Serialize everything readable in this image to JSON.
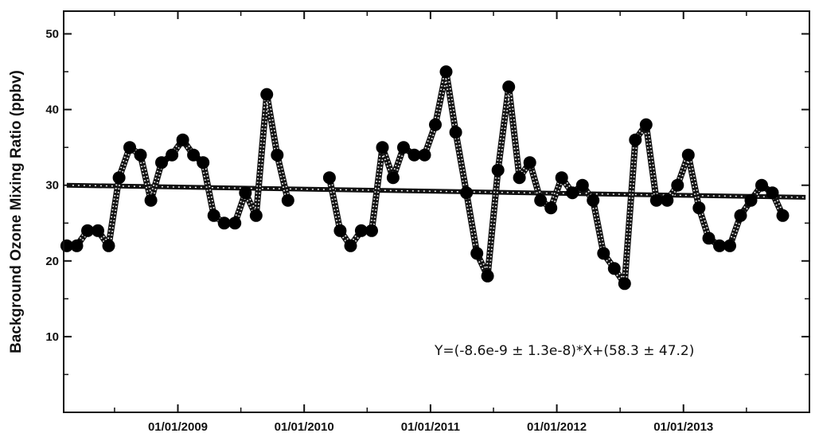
{
  "chart_data": {
    "type": "line",
    "ylabel": "Background Ozone Mixing Ratio (ppbv)",
    "xlabel": "",
    "ylim": [
      0,
      53
    ],
    "xlim": [
      "2008-02-06",
      "2013-12-31"
    ],
    "yticks": [
      10,
      20,
      30,
      40,
      50
    ],
    "yticks_minor": [
      5,
      15,
      25,
      35,
      45
    ],
    "xticks": [
      {
        "date": "2009-01-01",
        "label": "01/01/2009"
      },
      {
        "date": "2010-01-01",
        "label": "01/01/2010"
      },
      {
        "date": "2011-01-01",
        "label": "01/01/2011"
      },
      {
        "date": "2012-01-01",
        "label": "01/01/2012"
      },
      {
        "date": "2013-01-01",
        "label": "01/01/2013"
      }
    ],
    "xticks_minor": [
      "2008-07-02",
      "2009-07-02",
      "2010-07-02",
      "2011-07-02",
      "2012-07-02",
      "2013-07-02"
    ],
    "grid": false,
    "equation": "Y=(-8.6e-9 ± 1.3e-8)*X+(58.3 ± 47.2)",
    "trend": {
      "start": {
        "x": "2008-02-15",
        "y": 30.0
      },
      "end": {
        "x": "2013-12-20",
        "y": 28.4
      }
    },
    "series": [
      {
        "segments": [
          [
            {
              "x": "2008-02-15",
              "y": 22
            },
            {
              "x": "2008-03-15",
              "y": 22
            },
            {
              "x": "2008-04-15",
              "y": 24
            },
            {
              "x": "2008-05-15",
              "y": 24
            },
            {
              "x": "2008-06-15",
              "y": 22
            },
            {
              "x": "2008-07-15",
              "y": 31
            },
            {
              "x": "2008-08-15",
              "y": 35
            },
            {
              "x": "2008-09-15",
              "y": 34
            },
            {
              "x": "2008-10-15",
              "y": 28
            },
            {
              "x": "2008-11-15",
              "y": 33
            },
            {
              "x": "2008-12-15",
              "y": 34
            },
            {
              "x": "2009-01-15",
              "y": 36
            },
            {
              "x": "2009-02-15",
              "y": 34
            },
            {
              "x": "2009-03-15",
              "y": 33
            },
            {
              "x": "2009-04-15",
              "y": 26
            },
            {
              "x": "2009-05-15",
              "y": 25
            },
            {
              "x": "2009-06-15",
              "y": 25
            },
            {
              "x": "2009-07-15",
              "y": 29
            },
            {
              "x": "2009-08-15",
              "y": 26
            },
            {
              "x": "2009-09-15",
              "y": 42
            },
            {
              "x": "2009-10-15",
              "y": 34
            },
            {
              "x": "2009-11-15",
              "y": 28
            }
          ],
          [
            {
              "x": "2010-03-15",
              "y": 31
            },
            {
              "x": "2010-04-15",
              "y": 24
            },
            {
              "x": "2010-05-15",
              "y": 22
            },
            {
              "x": "2010-06-15",
              "y": 24
            },
            {
              "x": "2010-07-15",
              "y": 24
            },
            {
              "x": "2010-08-15",
              "y": 35
            },
            {
              "x": "2010-09-15",
              "y": 31
            },
            {
              "x": "2010-10-15",
              "y": 35
            },
            {
              "x": "2010-11-15",
              "y": 34
            },
            {
              "x": "2010-12-15",
              "y": 34
            },
            {
              "x": "2011-01-15",
              "y": 38
            },
            {
              "x": "2011-02-15",
              "y": 45
            },
            {
              "x": "2011-03-15",
              "y": 37
            },
            {
              "x": "2011-04-15",
              "y": 29
            },
            {
              "x": "2011-05-15",
              "y": 21
            },
            {
              "x": "2011-06-15",
              "y": 18
            },
            {
              "x": "2011-07-15",
              "y": 32
            },
            {
              "x": "2011-08-15",
              "y": 43
            },
            {
              "x": "2011-09-15",
              "y": 31
            },
            {
              "x": "2011-10-15",
              "y": 33
            },
            {
              "x": "2011-11-15",
              "y": 28
            },
            {
              "x": "2011-12-15",
              "y": 27
            },
            {
              "x": "2012-01-15",
              "y": 31
            },
            {
              "x": "2012-02-15",
              "y": 29
            },
            {
              "x": "2012-03-15",
              "y": 30
            },
            {
              "x": "2012-04-15",
              "y": 28
            },
            {
              "x": "2012-05-15",
              "y": 21
            },
            {
              "x": "2012-06-15",
              "y": 19
            },
            {
              "x": "2012-07-15",
              "y": 17
            },
            {
              "x": "2012-08-15",
              "y": 36
            },
            {
              "x": "2012-09-15",
              "y": 38
            },
            {
              "x": "2012-10-15",
              "y": 28
            },
            {
              "x": "2012-11-15",
              "y": 28
            },
            {
              "x": "2012-12-15",
              "y": 30
            },
            {
              "x": "2013-01-15",
              "y": 34
            },
            {
              "x": "2013-02-15",
              "y": 27
            },
            {
              "x": "2013-03-15",
              "y": 23
            },
            {
              "x": "2013-04-15",
              "y": 22
            },
            {
              "x": "2013-05-15",
              "y": 22
            },
            {
              "x": "2013-06-15",
              "y": 26
            },
            {
              "x": "2013-07-15",
              "y": 28
            },
            {
              "x": "2013-08-15",
              "y": 30
            },
            {
              "x": "2013-09-15",
              "y": 29
            },
            {
              "x": "2013-10-15",
              "y": 26
            }
          ]
        ]
      }
    ]
  }
}
